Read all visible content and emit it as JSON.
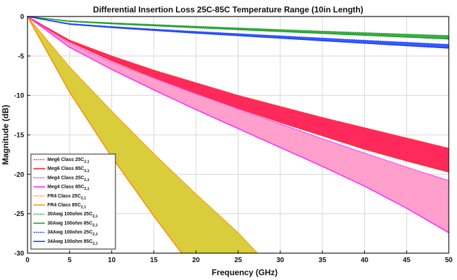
{
  "chart_data": {
    "type": "area",
    "title": "Differential Insertion Loss 25C-85C Temperature Range (10in Length)",
    "xlabel": "Frequency (GHz)",
    "ylabel": "Magnitude (dB)",
    "xlim": [
      0,
      50
    ],
    "ylim": [
      -30,
      0
    ],
    "xticks": [
      0,
      5,
      10,
      15,
      20,
      25,
      30,
      35,
      40,
      45,
      50
    ],
    "yticks": [
      0,
      -5,
      -10,
      -15,
      -20,
      -25,
      -30
    ],
    "grid": true,
    "legend_position": "bottom-left",
    "bands": [
      {
        "name": "Meg6 band",
        "fill": "#ff1f52",
        "lower_series": "Meg6 Class 85C",
        "upper_series": "Meg6 Class 25C"
      },
      {
        "name": "Meg4 band",
        "fill": "#ff9ac9",
        "lower_series": "Meg4 Class 85C",
        "upper_series": "Meg4 Class 25C"
      },
      {
        "name": "FR4 band",
        "fill": "#d8cc38",
        "lower_series": "FR4 Class 85C",
        "upper_series": "FR4 Class 25C"
      },
      {
        "name": "30Awg band",
        "fill": "#35a83a",
        "lower_series": "30Awg 100ohm 85C",
        "upper_series": "30Awg 100ohm 25C"
      },
      {
        "name": "34Awg band",
        "fill": "#2956ff",
        "lower_series": "34Awg 100ohm 85C",
        "upper_series": "34Awg 100ohm 25C"
      }
    ],
    "series": [
      {
        "name": "Meg6 Class 25C",
        "legend_main": "Meg6 Class 25C",
        "legend_sub": "2,1",
        "color": "#ff2a2a",
        "style": "dotted",
        "x": [
          0,
          5,
          10,
          15,
          20,
          25,
          30,
          35,
          40,
          45,
          50
        ],
        "y": [
          0,
          -3.0,
          -5.0,
          -6.8,
          -8.4,
          -10.0,
          -11.4,
          -12.8,
          -14.1,
          -15.4,
          -16.7
        ]
      },
      {
        "name": "Meg6 Class 85C",
        "legend_main": "Meg6 Class 85C",
        "legend_sub": "2,1",
        "color": "#ff2a2a",
        "style": "solid",
        "x": [
          0,
          5,
          10,
          15,
          20,
          25,
          30,
          35,
          40,
          45,
          50
        ],
        "y": [
          0,
          -3.2,
          -5.6,
          -7.7,
          -9.7,
          -11.6,
          -13.4,
          -15.1,
          -16.8,
          -18.3,
          -19.7
        ]
      },
      {
        "name": "Meg4 Class 25C",
        "legend_main": "Meg4 Class 25C",
        "legend_sub": "2,1",
        "color": "#ff26ff",
        "style": "dotted",
        "x": [
          0,
          5,
          10,
          15,
          20,
          25,
          30,
          35,
          40,
          45,
          50
        ],
        "y": [
          0,
          -3.4,
          -5.8,
          -7.8,
          -9.8,
          -11.7,
          -13.6,
          -15.5,
          -17.3,
          -19.1,
          -20.8
        ]
      },
      {
        "name": "Meg4 Class 85C",
        "legend_main": "Meg4 Class 85C",
        "legend_sub": "2,1",
        "color": "#ff26ff",
        "style": "solid",
        "x": [
          0,
          5,
          10,
          15,
          20,
          25,
          30,
          35,
          40,
          45,
          50
        ],
        "y": [
          0,
          -3.9,
          -6.7,
          -9.3,
          -11.8,
          -14.2,
          -16.6,
          -19.0,
          -21.5,
          -24.3,
          -27.4
        ]
      },
      {
        "name": "FR4 Class 25C",
        "legend_main": "FR4 Class 25C",
        "legend_sub": "2,1",
        "color": "#ff8a00",
        "style": "dotted",
        "x": [
          0,
          5,
          10,
          15,
          20,
          25,
          27.3
        ],
        "y": [
          0,
          -6.4,
          -12.0,
          -17.4,
          -22.5,
          -27.4,
          -30.0
        ]
      },
      {
        "name": "FR4 Class 85C",
        "legend_main": "FR4 Class 85C",
        "legend_sub": "2,1",
        "color": "#ff8a00",
        "style": "solid",
        "x": [
          0,
          5,
          10,
          15,
          18.3
        ],
        "y": [
          0,
          -9.6,
          -17.8,
          -25.3,
          -30.0
        ]
      },
      {
        "name": "30Awg 100ohm 25C",
        "legend_main": "30Awg 100ohm 25C",
        "legend_sub": "2,1",
        "color": "#1f9f2b",
        "style": "dotted",
        "x": [
          0,
          5,
          10,
          15,
          20,
          25,
          30,
          35,
          40,
          45,
          50
        ],
        "y": [
          0,
          -0.55,
          -0.8,
          -1.02,
          -1.24,
          -1.45,
          -1.66,
          -1.86,
          -2.05,
          -2.24,
          -2.42
        ]
      },
      {
        "name": "30Awg 100ohm 85C",
        "legend_main": "30Awg 100ohm 85C",
        "legend_sub": "2,1",
        "color": "#1f9f2b",
        "style": "solid",
        "x": [
          0,
          5,
          10,
          15,
          20,
          25,
          30,
          35,
          40,
          45,
          50
        ],
        "y": [
          0,
          -0.62,
          -0.92,
          -1.17,
          -1.42,
          -1.66,
          -1.9,
          -2.14,
          -2.38,
          -2.61,
          -2.84
        ]
      },
      {
        "name": "34Awg 100ohm 25C",
        "legend_main": "34Awg 100ohm 25C",
        "legend_sub": "2,1",
        "color": "#1d3cff",
        "style": "dotted",
        "x": [
          0,
          5,
          10,
          15,
          20,
          25,
          30,
          35,
          40,
          45,
          50
        ],
        "y": [
          0,
          -0.9,
          -1.28,
          -1.6,
          -1.9,
          -2.18,
          -2.46,
          -2.74,
          -3.02,
          -3.28,
          -3.55
        ]
      },
      {
        "name": "34Awg 100ohm 85C",
        "legend_main": "34Awg 100ohm 85C",
        "legend_sub": "2,1",
        "color": "#1d3cff",
        "style": "solid",
        "x": [
          0,
          5,
          10,
          15,
          20,
          25,
          30,
          35,
          40,
          45,
          50
        ],
        "y": [
          0,
          -0.98,
          -1.4,
          -1.76,
          -2.1,
          -2.42,
          -2.74,
          -3.06,
          -3.38,
          -3.7,
          -4.0
        ]
      }
    ]
  }
}
